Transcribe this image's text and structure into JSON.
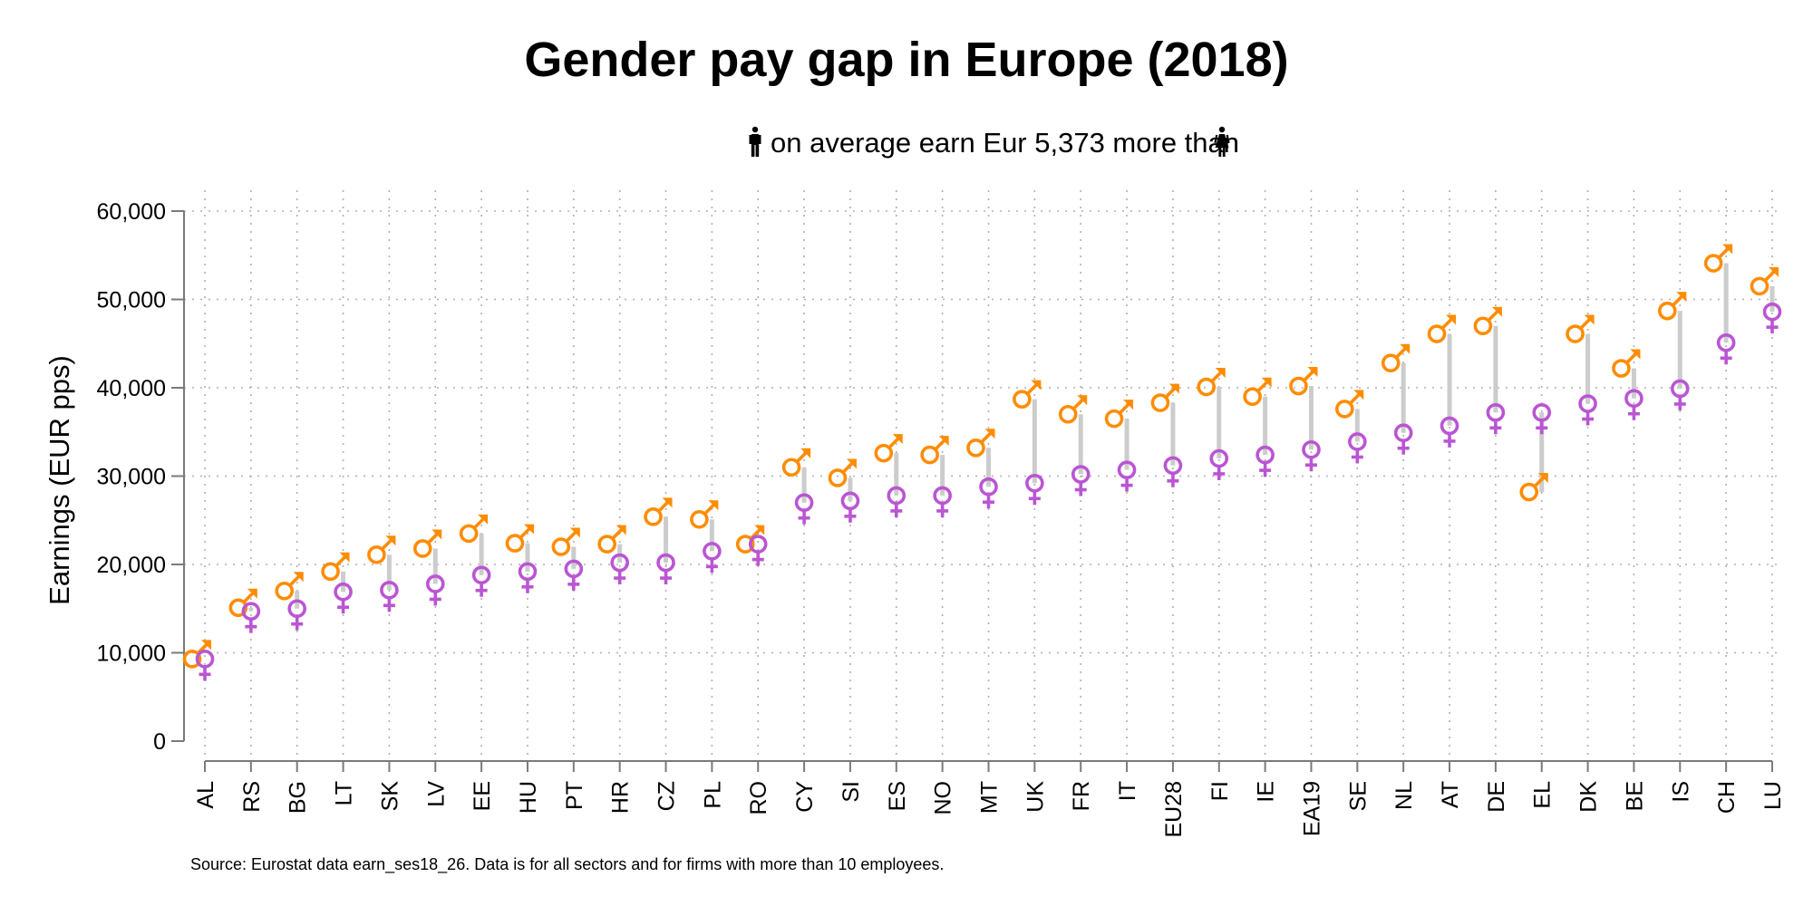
{
  "chart_data": {
    "type": "dot-range",
    "title": "Gender pay gap in Europe (2018)",
    "subtitle_prefix_icon": "man-icon",
    "subtitle": "on average earn Eur 5,373 more than",
    "subtitle_suffix_icon": "woman-icon",
    "ylabel": "Earnings (EUR pps)",
    "xlabel": "",
    "ylim": [
      0,
      60000
    ],
    "yticks": [
      0,
      10000,
      20000,
      30000,
      40000,
      50000,
      60000
    ],
    "ytick_labels": [
      "0",
      "10,000",
      "20,000",
      "30,000",
      "40,000",
      "50,000",
      "60,000"
    ],
    "grid": true,
    "categories": [
      "AL",
      "RS",
      "BG",
      "LT",
      "SK",
      "LV",
      "EE",
      "HU",
      "PT",
      "HR",
      "CZ",
      "PL",
      "RO",
      "CY",
      "SI",
      "ES",
      "NO",
      "MT",
      "UK",
      "FR",
      "IT",
      "EU28",
      "FI",
      "IE",
      "EA19",
      "SE",
      "NL",
      "AT",
      "DE",
      "EL",
      "DK",
      "BE",
      "IS",
      "CH",
      "LU"
    ],
    "series": [
      {
        "name": "men",
        "marker": "male-symbol",
        "color": "#FF8C00",
        "values": [
          9300,
          15100,
          17000,
          19200,
          21100,
          21800,
          23500,
          22400,
          22000,
          22300,
          25400,
          25100,
          22300,
          31000,
          29800,
          32600,
          32400,
          33200,
          38700,
          37000,
          36500,
          38300,
          40100,
          39000,
          40200,
          37600,
          42800,
          46100,
          47000,
          28200,
          46100,
          42200,
          48700,
          54100,
          51500
        ]
      },
      {
        "name": "women",
        "marker": "female-symbol",
        "color": "#BA55D3",
        "values": [
          9300,
          14700,
          15000,
          16900,
          17100,
          17800,
          18800,
          19200,
          19500,
          20200,
          20200,
          21500,
          22300,
          27000,
          27200,
          27800,
          27800,
          28800,
          29200,
          30200,
          30700,
          31200,
          32000,
          32400,
          33000,
          33900,
          34900,
          35700,
          37200,
          37200,
          38200,
          38800,
          39900,
          45100,
          48600
        ]
      }
    ],
    "source_note": "Source: Eurostat data earn_ses18_26. Data is for all sectors and for firms with more than 10 employees."
  }
}
